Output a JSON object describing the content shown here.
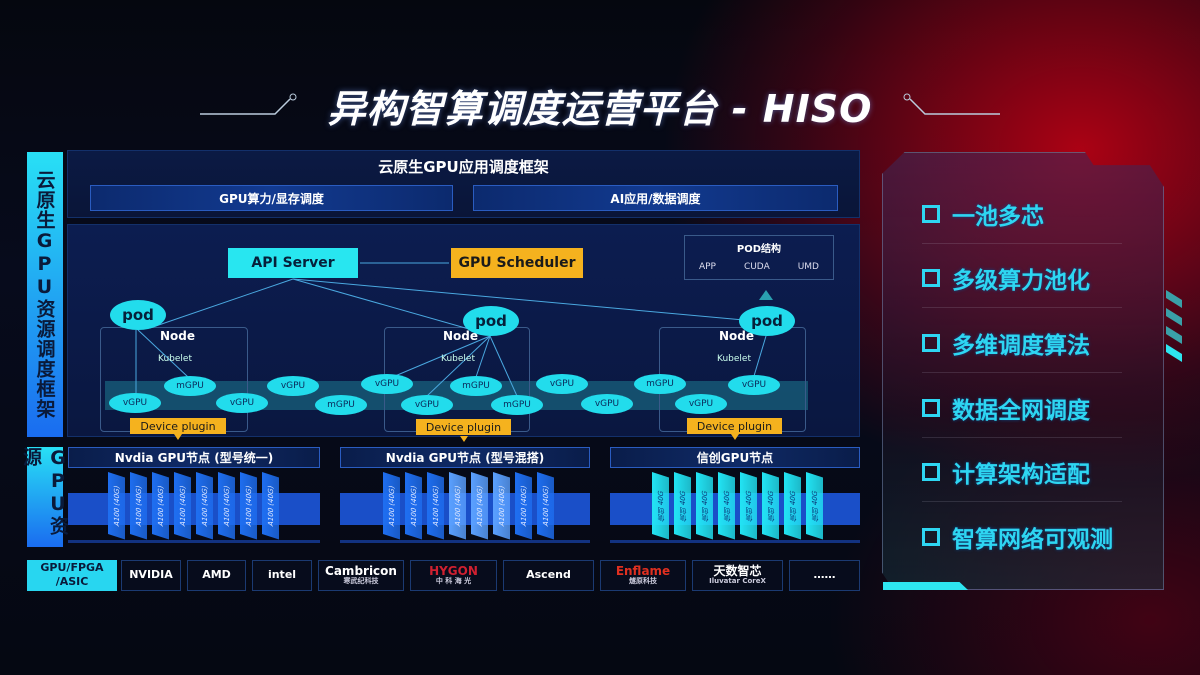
{
  "title": "异构智算调度运营平台 - HISO",
  "side_labels": {
    "framework": "云原生GPU资源调度框架",
    "resources": "GPU资源",
    "hardware": "GPU/FPGA /ASIC"
  },
  "framework": {
    "title": "云原生GPU应用调度框架",
    "bars": [
      "GPU算力/显存调度",
      "AI应用/数据调度"
    ]
  },
  "diagram": {
    "api_server": "API Server",
    "gpu_scheduler": "GPU Scheduler",
    "pod_structure": {
      "title": "POD结构",
      "items": [
        "APP",
        "CUDA",
        "UMD"
      ]
    },
    "pod": "pod",
    "node": "Node",
    "kubelet": "Kubelet",
    "device_plugin": "Device plugin",
    "units": [
      "vGPU",
      "mGPU",
      "vGPU",
      "vGPU",
      "mGPU",
      "vGPU",
      "vGPU",
      "mGPU",
      "mGPU",
      "vGPU",
      "vGPU",
      "mGPU",
      "vGPU",
      "vGPU"
    ]
  },
  "gpu_nodes": [
    {
      "title": "Nvdia GPU节点 (型号统一)",
      "chips": [
        "A100 (40G)",
        "A100 (40G)",
        "A100 (40G)",
        "A100 (40G)",
        "A100 (40G)",
        "A100 (40G)",
        "A100 (40G)",
        "A100 (40G)"
      ],
      "color": "#1e6ef0"
    },
    {
      "title": "Nvdia GPU节点 (型号混搭)",
      "chips": [
        "A100 (40G)",
        "A100 (40G)",
        "A100 (40G)",
        "A100 (40G)",
        "A100 (40G)",
        "A100 (40G)",
        "A100 (40G)",
        "A100 (40G)"
      ],
      "color": "#1e6ef0",
      "light_color": "#5aa0ff"
    },
    {
      "title": "信创GPU节点",
      "chips": [
        "信创 40G",
        "信创 40G",
        "信创 40G",
        "信创 40G",
        "信创 40G",
        "信创 40G",
        "信创 40G",
        "信创 40G"
      ],
      "color": "#22e4f4"
    }
  ],
  "vendors": [
    {
      "name": "NVIDIA"
    },
    {
      "name": "AMD"
    },
    {
      "name": "intel"
    },
    {
      "name": "Cambricon",
      "sub": "寒武纪科技"
    },
    {
      "name": "HYGON",
      "sub": "中 科 海 光"
    },
    {
      "name": "Ascend"
    },
    {
      "name": "Enflame",
      "sub": "燧原科技"
    },
    {
      "name": "天数智芯",
      "sub": "Iluvatar CoreX"
    },
    {
      "name": "……"
    }
  ],
  "features": [
    "一池多芯",
    "多级算力池化",
    "多维调度算法",
    "数据全网调度",
    "计算架构适配",
    "智算网络可观测"
  ],
  "colors": {
    "accent_cyan": "#28e6f0",
    "accent_yellow": "#f5b21e",
    "accent_blue": "#1e6ef0",
    "bg_red": "#c80014"
  }
}
